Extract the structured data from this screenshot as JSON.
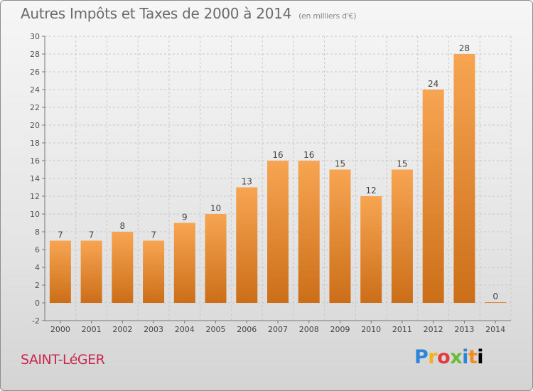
{
  "header": {
    "title": "Autres Impôts et Taxes de 2000 à 2014",
    "unit": "(en milliers d'€)"
  },
  "footer": {
    "city": "SAINT-LéGER",
    "logo_letters": [
      "P",
      "r",
      "o",
      "x",
      "i",
      "t",
      "i"
    ]
  },
  "colors": {
    "bar_top": "#f7a552",
    "bar_bottom": "#cc6e18",
    "grid": "#c8c8c8",
    "city": "#c8284f"
  },
  "chart_data": {
    "type": "bar",
    "title": "Autres Impôts et Taxes de 2000 à 2014",
    "subtitle": "(en milliers d'€)",
    "categories": [
      "2000",
      "2001",
      "2002",
      "2003",
      "2004",
      "2005",
      "2006",
      "2007",
      "2008",
      "2009",
      "2010",
      "2011",
      "2012",
      "2013",
      "2014"
    ],
    "values": [
      7,
      7,
      8,
      7,
      9,
      10,
      13,
      16,
      16,
      15,
      12,
      15,
      24,
      28,
      0
    ],
    "data_labels": [
      "7",
      "7",
      "8",
      "7",
      "9",
      "10",
      "13",
      "16",
      "16",
      "15",
      "12",
      "15",
      "24",
      "28",
      "0"
    ],
    "ylim": [
      -2,
      30
    ],
    "yticks": [
      -2,
      0,
      2,
      4,
      6,
      8,
      10,
      12,
      14,
      16,
      18,
      20,
      22,
      24,
      26,
      28,
      30
    ],
    "grid": true
  }
}
